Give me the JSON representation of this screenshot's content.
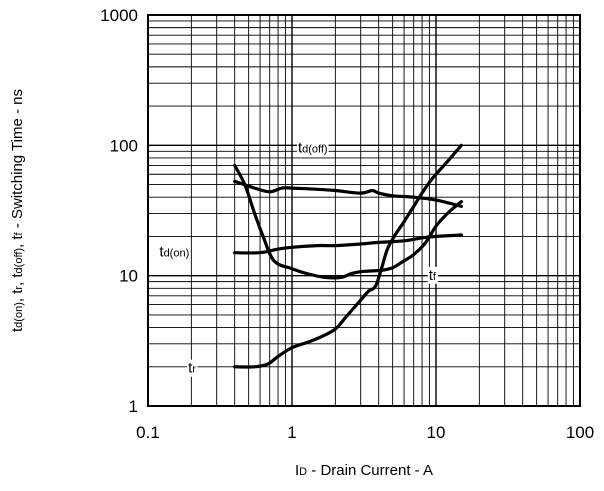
{
  "chart_data": {
    "type": "line",
    "title": "",
    "xlabel": {
      "main": "I",
      "sub": "D",
      "rest": " - Drain Current - A"
    },
    "ylabel": {
      "parts": [
        {
          "t": "t",
          "s": "d(on)"
        },
        {
          "t": ", t",
          "s": "r"
        },
        {
          "t": ", t",
          "s": "d(off)"
        },
        {
          "t": ", t",
          "s": "f"
        },
        {
          "t": " - Switching Time - ns",
          "s": ""
        }
      ]
    },
    "x_scale": "log",
    "y_scale": "log",
    "xlim": [
      0.1,
      100
    ],
    "ylim": [
      1,
      1000
    ],
    "x_ticks": [
      {
        "v": 0.1,
        "label": "0.1"
      },
      {
        "v": 1,
        "label": "1"
      },
      {
        "v": 10,
        "label": "10"
      },
      {
        "v": 100,
        "label": "100"
      }
    ],
    "y_ticks": [
      {
        "v": 1,
        "label": "1"
      },
      {
        "v": 10,
        "label": "10"
      },
      {
        "v": 100,
        "label": "100"
      },
      {
        "v": 1000,
        "label": "1000"
      }
    ],
    "grid": true,
    "series": [
      {
        "name": "td(off)",
        "label": {
          "main": "t",
          "sub": "d(off)",
          "x": 1.1,
          "y": 88
        },
        "points": [
          [
            0.4,
            53
          ],
          [
            0.55,
            47
          ],
          [
            0.7,
            44
          ],
          [
            0.85,
            47
          ],
          [
            1.0,
            47
          ],
          [
            1.5,
            46
          ],
          [
            2,
            45
          ],
          [
            3,
            43
          ],
          [
            3.6,
            45
          ],
          [
            4,
            43
          ],
          [
            5,
            41
          ],
          [
            7,
            40
          ],
          [
            10,
            38
          ],
          [
            15,
            34
          ]
        ]
      },
      {
        "name": "td(on)",
        "label": {
          "main": "t",
          "sub": "d(on)",
          "x": 0.12,
          "y": 14
        },
        "points": [
          [
            0.4,
            15
          ],
          [
            0.6,
            15
          ],
          [
            0.8,
            16
          ],
          [
            1,
            16.5
          ],
          [
            1.5,
            17
          ],
          [
            2,
            17
          ],
          [
            3,
            17.5
          ],
          [
            4,
            18
          ],
          [
            6,
            18.5
          ],
          [
            8,
            19.5
          ],
          [
            10,
            20
          ],
          [
            15,
            20.5
          ]
        ]
      },
      {
        "name": "tf",
        "label": {
          "main": "t",
          "sub": "f",
          "x": 8.9,
          "y": 9.3
        },
        "points": [
          [
            0.4,
            70
          ],
          [
            0.47,
            50
          ],
          [
            0.55,
            30
          ],
          [
            0.63,
            20
          ],
          [
            0.75,
            13
          ],
          [
            1.0,
            11.3
          ],
          [
            1.3,
            10.3
          ],
          [
            1.7,
            9.7
          ],
          [
            2.2,
            9.7
          ],
          [
            2.6,
            10.4
          ],
          [
            3.2,
            10.8
          ],
          [
            4.2,
            11
          ],
          [
            5,
            11.5
          ],
          [
            6,
            13
          ],
          [
            7,
            14.5
          ],
          [
            8.5,
            18
          ],
          [
            10,
            24
          ],
          [
            12,
            30
          ],
          [
            15,
            37
          ]
        ]
      },
      {
        "name": "tr",
        "label": {
          "main": "t",
          "sub": "r",
          "x": 0.19,
          "y": 1.8
        },
        "points": [
          [
            0.4,
            2
          ],
          [
            0.55,
            2
          ],
          [
            0.68,
            2.1
          ],
          [
            0.8,
            2.4
          ],
          [
            1.0,
            2.8
          ],
          [
            1.3,
            3.1
          ],
          [
            1.6,
            3.4
          ],
          [
            2,
            3.9
          ],
          [
            2.4,
            4.9
          ],
          [
            3,
            6.5
          ],
          [
            3.4,
            7.6
          ],
          [
            3.8,
            8.3
          ],
          [
            4.2,
            11.5
          ],
          [
            4.6,
            16
          ],
          [
            5.2,
            20.5
          ],
          [
            6,
            26
          ],
          [
            7,
            34
          ],
          [
            8,
            43
          ],
          [
            9,
            52
          ],
          [
            10,
            60
          ],
          [
            12,
            75
          ],
          [
            15,
            100
          ]
        ]
      }
    ]
  }
}
